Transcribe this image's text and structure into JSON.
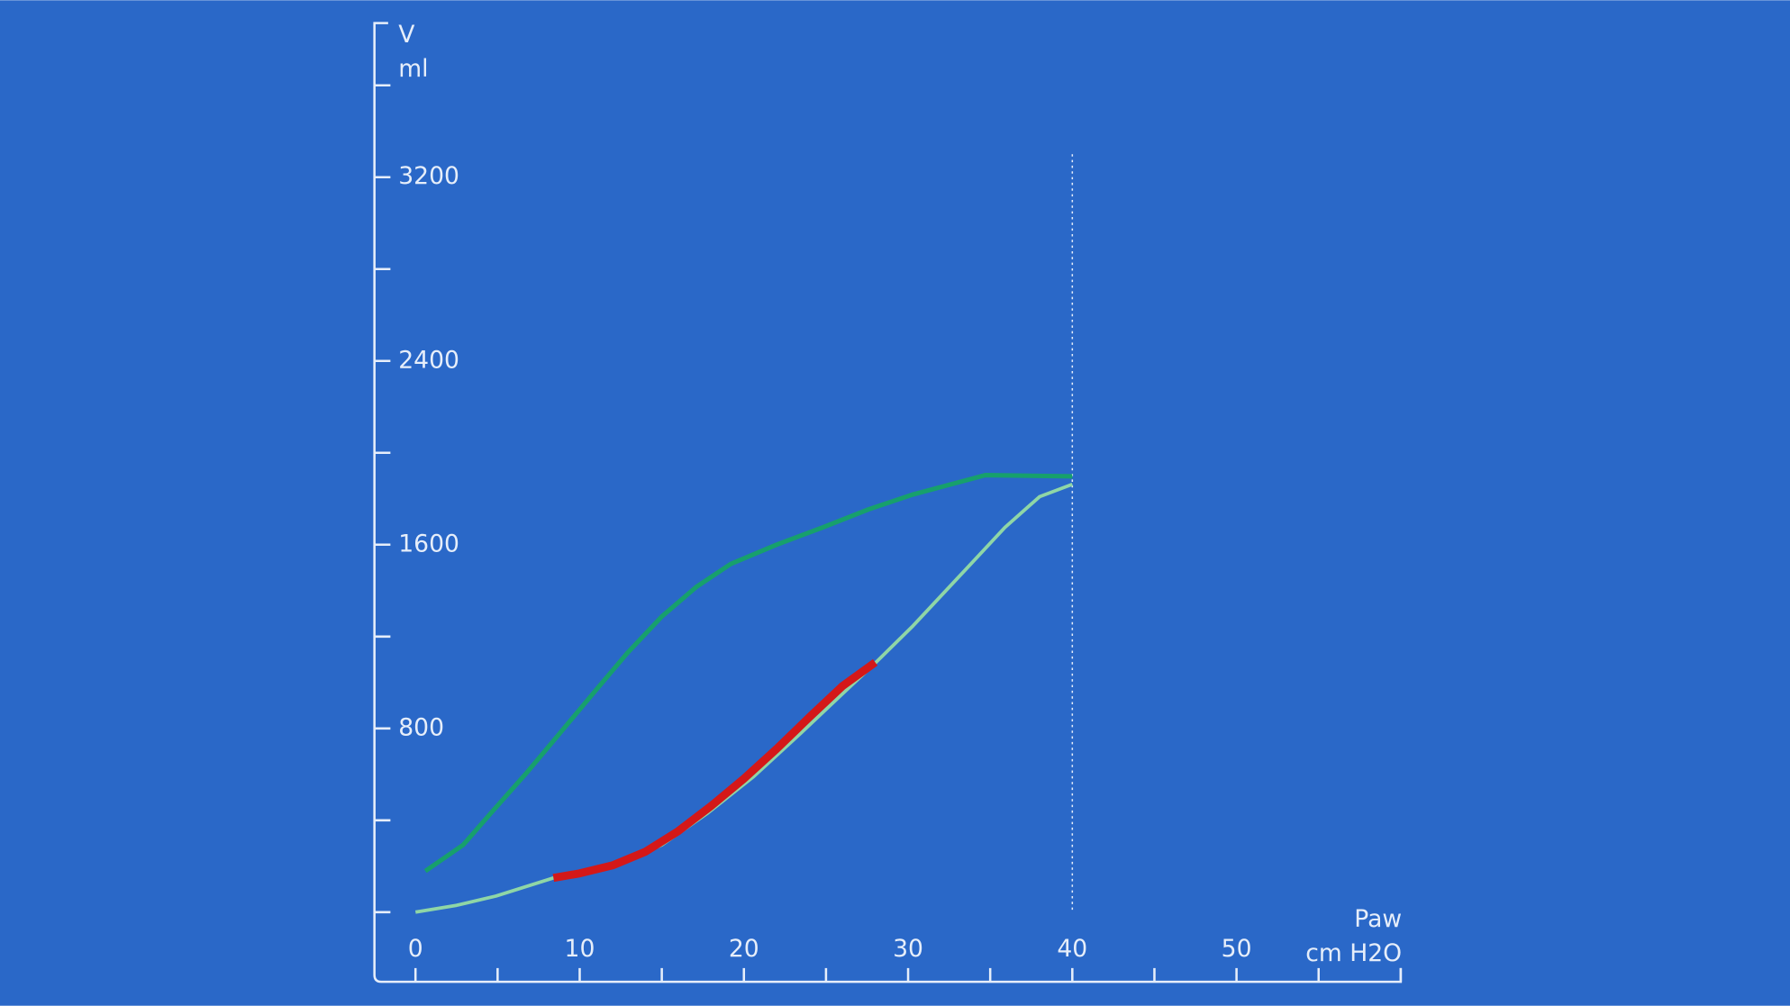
{
  "chart_data": {
    "type": "line",
    "y_label": "V",
    "y_unit": "ml",
    "x_label": "Paw",
    "x_unit": "cm H2O",
    "xlim": [
      -2.5,
      60
    ],
    "ylim": [
      -303,
      3871
    ],
    "xticks": [
      0,
      10,
      20,
      30,
      40,
      50
    ],
    "xminor_ticks": [
      5,
      15,
      25,
      35,
      45,
      55,
      60
    ],
    "yticks": [
      800,
      1600,
      2400,
      3200
    ],
    "yminor_ticks": [
      0,
      400,
      1200,
      2000,
      2800,
      3600
    ],
    "marker_x": 40,
    "marker_top": 3300,
    "background": "#2a68c8",
    "axis_color": "#e6eefa",
    "series": [
      {
        "color": "#8fd6a6",
        "width": 3,
        "x": [
          0,
          2.5,
          4.9,
          8.4,
          12.2,
          15,
          17.8,
          20.6,
          23.4,
          26.2,
          27.9,
          30.3,
          33.1,
          35.9,
          38,
          40
        ],
        "values": [
          0,
          30,
          70,
          149,
          204,
          293,
          432,
          591,
          775,
          964,
          1078,
          1247,
          1461,
          1675,
          1809,
          1863
        ]
      },
      {
        "color": "#17a06c",
        "width": 4,
        "x": [
          40,
          34.7,
          30.3,
          27.6,
          24.8,
          22,
          19.2,
          17.1,
          15,
          12.9,
          10.9,
          8.8,
          6.7,
          4.6,
          2.9,
          0.6
        ],
        "values": [
          1898,
          1903,
          1819,
          1754,
          1675,
          1600,
          1516,
          1416,
          1287,
          1128,
          959,
          780,
          601,
          432,
          293,
          179
        ]
      },
      {
        "color": "#d41818",
        "width": 7,
        "x": [
          8.4,
          10,
          12,
          14,
          16,
          18,
          20,
          22,
          24,
          26,
          28
        ],
        "values": [
          149,
          169,
          204,
          263,
          353,
          462,
          581,
          711,
          850,
          984,
          1088
        ]
      }
    ]
  }
}
